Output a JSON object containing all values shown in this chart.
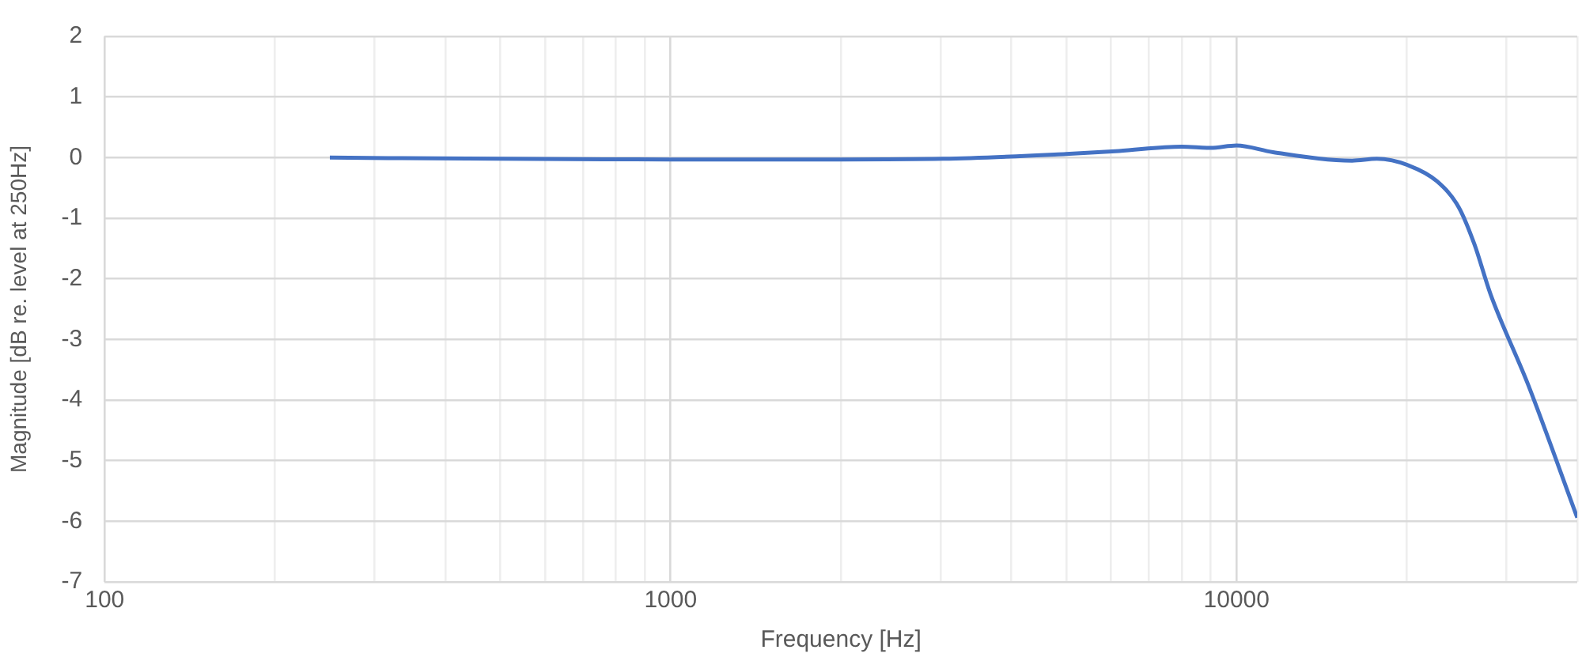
{
  "chart_data": {
    "type": "line",
    "xlabel": "Frequency [Hz]",
    "ylabel": "Magnitude [dB re. level at 250Hz]",
    "log": "x",
    "xlim": [
      100,
      40000
    ],
    "xticks": [
      100,
      {
        "value": 200,
        "label": null
      },
      {
        "value": 300,
        "label": null
      },
      {
        "value": 400,
        "label": null
      },
      {
        "value": 500,
        "label": null
      },
      {
        "value": 600,
        "label": null
      },
      {
        "value": 700,
        "label": null
      },
      {
        "value": 800,
        "label": null
      },
      {
        "value": 900,
        "label": null
      },
      1000,
      {
        "value": 2000,
        "label": null
      },
      {
        "value": 3000,
        "label": null
      },
      {
        "value": 4000,
        "label": null
      },
      {
        "value": 5000,
        "label": null
      },
      {
        "value": 6000,
        "label": null
      },
      {
        "value": 7000,
        "label": null
      },
      {
        "value": 8000,
        "label": null
      },
      {
        "value": 9000,
        "label": null
      },
      10000,
      {
        "value": 20000,
        "label": null
      },
      {
        "value": 30000,
        "label": null
      },
      {
        "value": 40000,
        "label": null
      }
    ],
    "ylim": [
      -7,
      2
    ],
    "yticks": [
      -7,
      -6,
      -5,
      -4,
      -3,
      -2,
      -1,
      0,
      1,
      2
    ],
    "grid": true,
    "legend": false,
    "marker": "none",
    "line_style": "solid",
    "series": [
      {
        "color": "#4472c4",
        "x": [
          250,
          500,
          1000,
          2000,
          3030,
          5000,
          6200,
          8000,
          9000,
          10000,
          11600,
          16000,
          17700,
          20150,
          22600,
          24700,
          26300,
          28100,
          32800,
          40000
        ],
        "values": [
          0,
          -0.02,
          -0.03,
          -0.03,
          -0.02,
          0.06,
          0.11,
          0.18,
          0.16,
          0.2,
          0.09,
          -0.05,
          -0.02,
          -0.13,
          -0.39,
          -0.82,
          -1.42,
          -2.25,
          -3.76,
          -5.94
        ]
      }
    ]
  }
}
